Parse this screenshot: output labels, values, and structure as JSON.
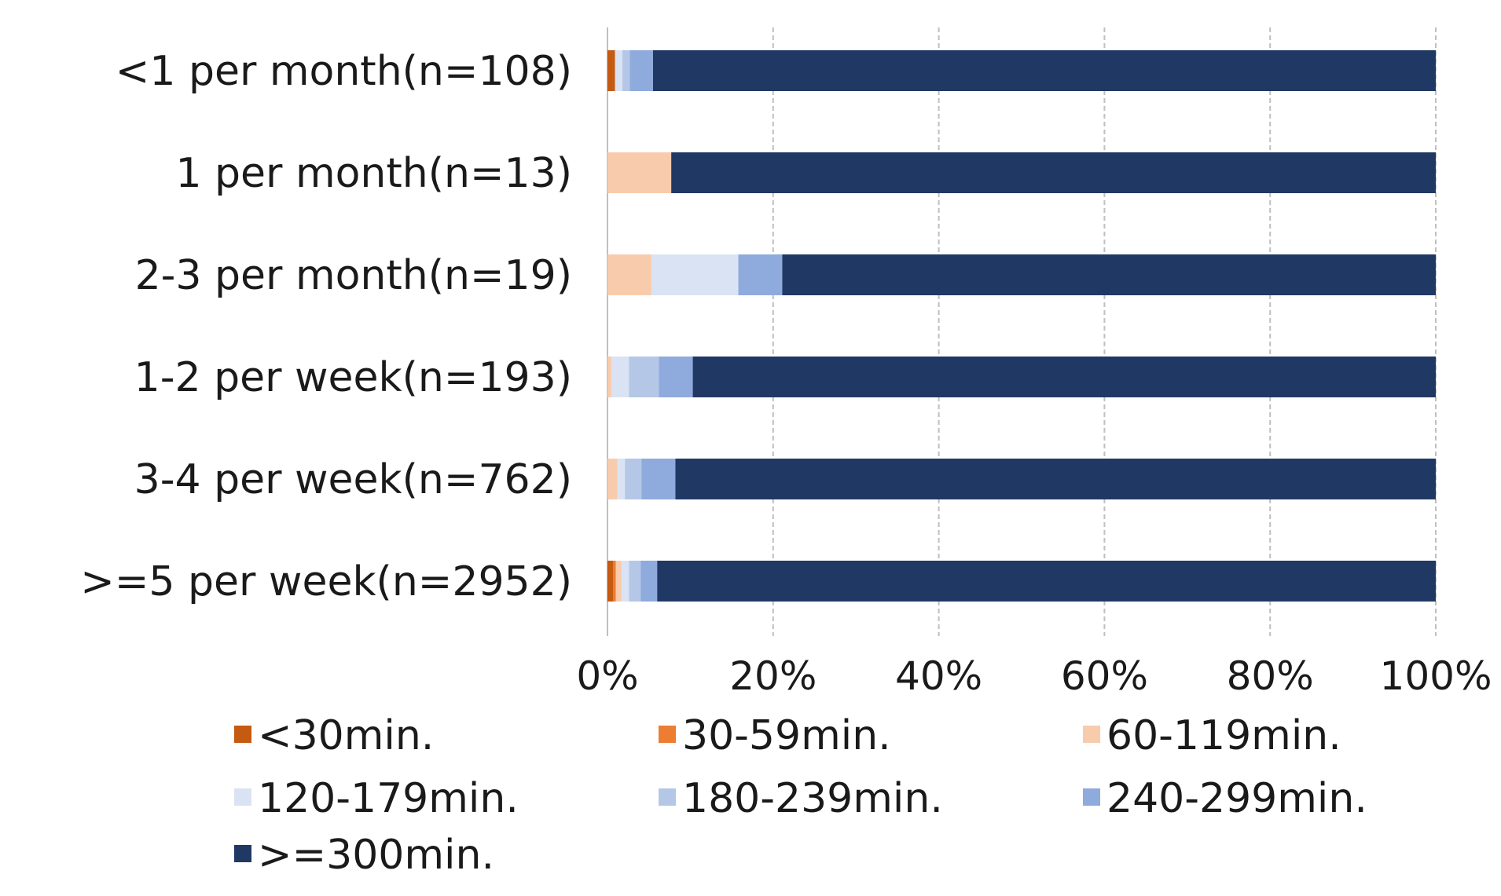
{
  "chart_data": {
    "type": "bar",
    "orientation": "horizontal",
    "stacked": true,
    "percent_stacked": true,
    "categories": [
      "<1 per month(n=108)",
      "1 per month(n=13)",
      "2-3 per month(n=19)",
      "1-2 per week(n=193)",
      "3-4 per week(n=762)",
      ">=5 per week(n=2952)"
    ],
    "series": [
      {
        "name": "<30min.",
        "color": "#c55a11",
        "values": [
          0.9,
          0,
          0,
          0,
          0,
          0.7
        ]
      },
      {
        "name": "30-59min.",
        "color": "#ed7d31",
        "values": [
          0,
          0,
          0,
          0,
          0,
          0.3
        ]
      },
      {
        "name": "60-119min.",
        "color": "#f8cbad",
        "values": [
          0,
          7.7,
          5.3,
          0.5,
          1.2,
          0.7
        ]
      },
      {
        "name": "120-179min.",
        "color": "#dae3f3",
        "values": [
          0.9,
          0,
          10.5,
          2.1,
          0.9,
          0.9
        ]
      },
      {
        "name": "180-239min.",
        "color": "#b4c7e7",
        "values": [
          0.9,
          0,
          0,
          3.6,
          2.0,
          1.4
        ]
      },
      {
        "name": "240-299min.",
        "color": "#8faadc",
        "values": [
          2.8,
          0,
          5.3,
          4.1,
          4.1,
          2.0
        ]
      },
      {
        "name": ">=300min.",
        "color": "#203864",
        "values": [
          94.5,
          92.3,
          78.9,
          89.7,
          91.8,
          94.0
        ]
      }
    ],
    "x_ticks": [
      "0%",
      "20%",
      "40%",
      "60%",
      "80%",
      "100%"
    ],
    "xlim": [
      0,
      100
    ],
    "grid": true,
    "legend_position": "bottom",
    "title": "",
    "xlabel": "",
    "ylabel": ""
  }
}
